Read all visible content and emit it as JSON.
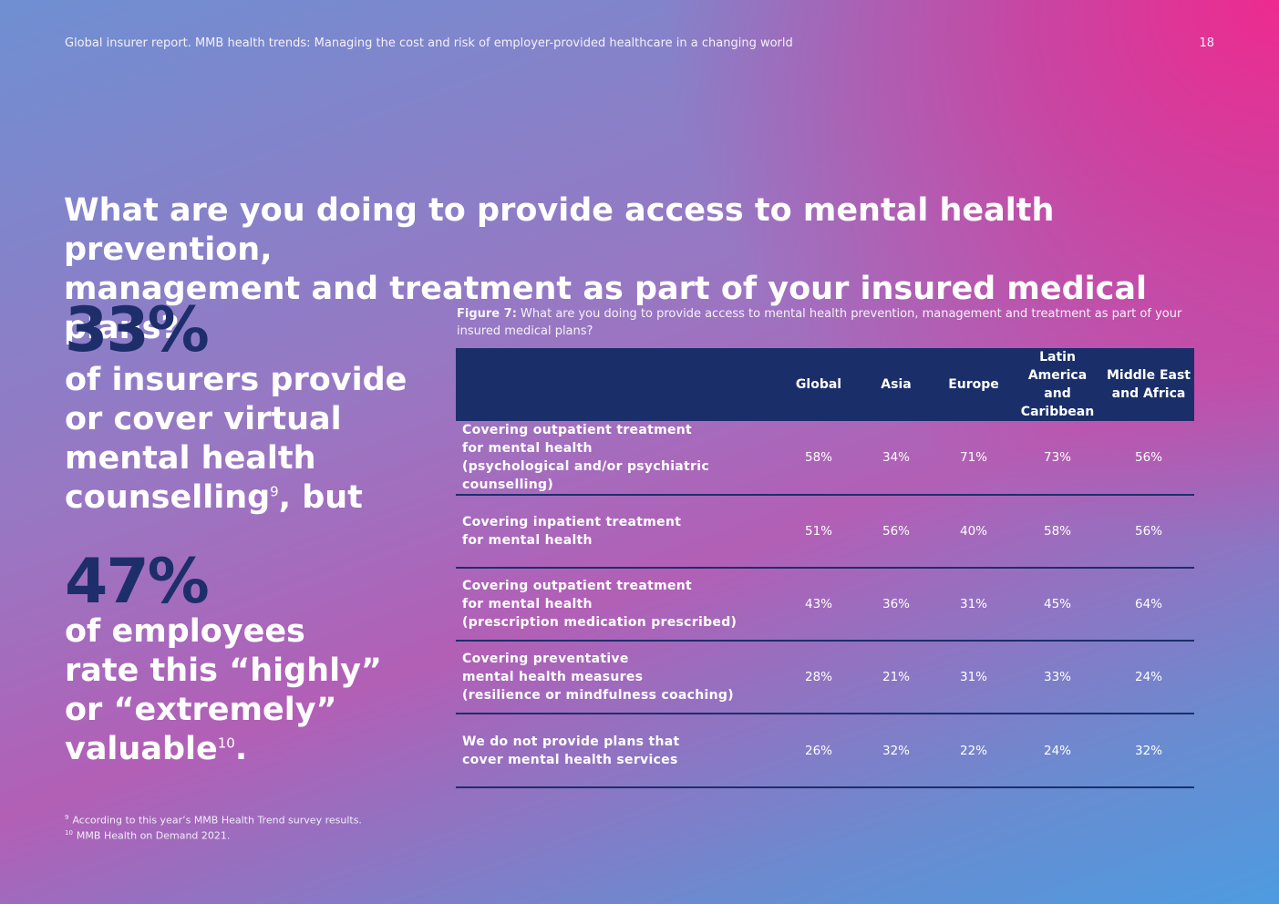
{
  "header": {
    "running_title": "Global insurer report. MMB health trends: Managing the cost and risk of employer-provided healthcare in a changing world",
    "page_number": "18"
  },
  "title": {
    "line1": "What are you doing to provide access to mental health prevention,",
    "line2": "management and treatment as part of your insured medical plans?"
  },
  "stat1": {
    "value": "33%",
    "line1": "of insurers provide",
    "line2": "or cover virtual",
    "line3": "mental health",
    "line4_pre": "counselling",
    "ref": "9",
    "line4_post": ", but"
  },
  "stat2": {
    "value": "47%",
    "line1": "of employees",
    "line2": "rate this “highly”",
    "line3": "or “extremely”",
    "line4_pre": "valuable",
    "ref": "10",
    "line4_post": "."
  },
  "figure": {
    "label": "Figure 7:",
    "caption": " What are you doing to provide access to mental health prevention, management and treatment as part of your insured medical plans?"
  },
  "table": {
    "headers": [
      "Global",
      "Asia",
      "Europe",
      "Latin America and Caribbean",
      "Middle East and Africa"
    ],
    "rows": [
      {
        "label": [
          "Covering outpatient treatment",
          "for mental health",
          "(psychological and/or psychiatric counselling)"
        ],
        "values": [
          "58%",
          "34%",
          "71%",
          "73%",
          "56%"
        ]
      },
      {
        "label": [
          "Covering inpatient treatment",
          "for mental health"
        ],
        "values": [
          "51%",
          "56%",
          "40%",
          "58%",
          "56%"
        ]
      },
      {
        "label": [
          "Covering outpatient treatment",
          "for mental health",
          "(prescription medication prescribed)"
        ],
        "values": [
          "43%",
          "36%",
          "31%",
          "45%",
          "64%"
        ]
      },
      {
        "label": [
          "Covering preventative",
          "mental health measures",
          "(resilience or mindfulness coaching)"
        ],
        "values": [
          "28%",
          "21%",
          "31%",
          "33%",
          "24%"
        ]
      },
      {
        "label": [
          "We do not provide plans that",
          "cover mental health services"
        ],
        "values": [
          "26%",
          "32%",
          "22%",
          "24%",
          "32%"
        ]
      }
    ]
  },
  "footnotes": [
    {
      "num": "9",
      "text": "According to this year’s MMB Health Trend survey results."
    },
    {
      "num": "10",
      "text": "MMB Health on Demand 2021."
    }
  ]
}
